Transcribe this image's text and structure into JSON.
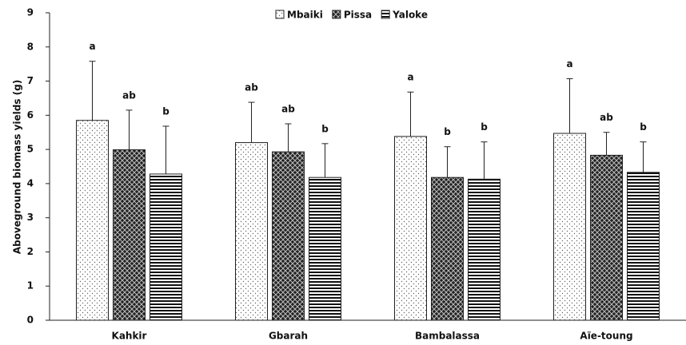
{
  "chart_data": {
    "type": "bar",
    "y_label": "Aboveground biomass yields (g)",
    "categories": [
      "Kahkir",
      "Gbarah",
      "Bambalassa",
      "Aïe-toung"
    ],
    "series": [
      {
        "name": "Mbaiki",
        "pattern": "dots",
        "values": [
          5.85,
          5.2,
          5.38,
          5.47
        ],
        "errors": [
          1.73,
          1.18,
          1.3,
          1.6
        ],
        "letters": [
          "a",
          "ab",
          "a",
          "a"
        ]
      },
      {
        "name": "Pissa",
        "pattern": "crosshatch",
        "values": [
          4.99,
          4.93,
          4.18,
          4.83
        ],
        "errors": [
          1.16,
          0.82,
          0.9,
          0.67
        ],
        "letters": [
          "ab",
          "ab",
          "b",
          "ab"
        ]
      },
      {
        "name": "Yaloke",
        "pattern": "stripes",
        "values": [
          4.28,
          4.18,
          4.13,
          4.33
        ],
        "errors": [
          1.4,
          0.99,
          1.09,
          0.89
        ],
        "letters": [
          "b",
          "b",
          "b",
          "b"
        ]
      }
    ],
    "ylim": [
      0,
      9
    ],
    "yticks": [
      0,
      1,
      2,
      3,
      4,
      5,
      6,
      7,
      8,
      9
    ],
    "legend": "top"
  }
}
